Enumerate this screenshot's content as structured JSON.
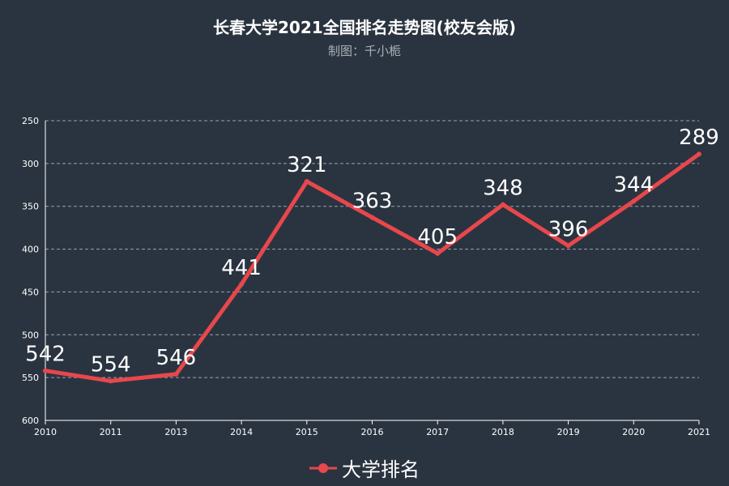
{
  "chart_data": {
    "type": "line",
    "title": "长春大学2021全国排名走势图(校友会版)",
    "subtitle": "制图：千小栀",
    "categories": [
      "2010",
      "2011",
      "2013",
      "2014",
      "2015",
      "2016",
      "2017",
      "2018",
      "2019",
      "2020",
      "2021"
    ],
    "series": [
      {
        "name": "大学排名",
        "values": [
          542,
          554,
          546,
          441,
          321,
          363,
          405,
          348,
          396,
          344,
          289
        ]
      }
    ],
    "ylim": [
      250,
      600
    ],
    "y_inverse": true,
    "yticks": [
      250,
      300,
      350,
      400,
      450,
      500,
      550,
      600
    ],
    "grid": true,
    "legend_position": "bottom",
    "colors": {
      "line": "#e8474c",
      "background": "#2a3440",
      "grid": "#9aa3ad",
      "axis_text": "#ffffff"
    }
  }
}
